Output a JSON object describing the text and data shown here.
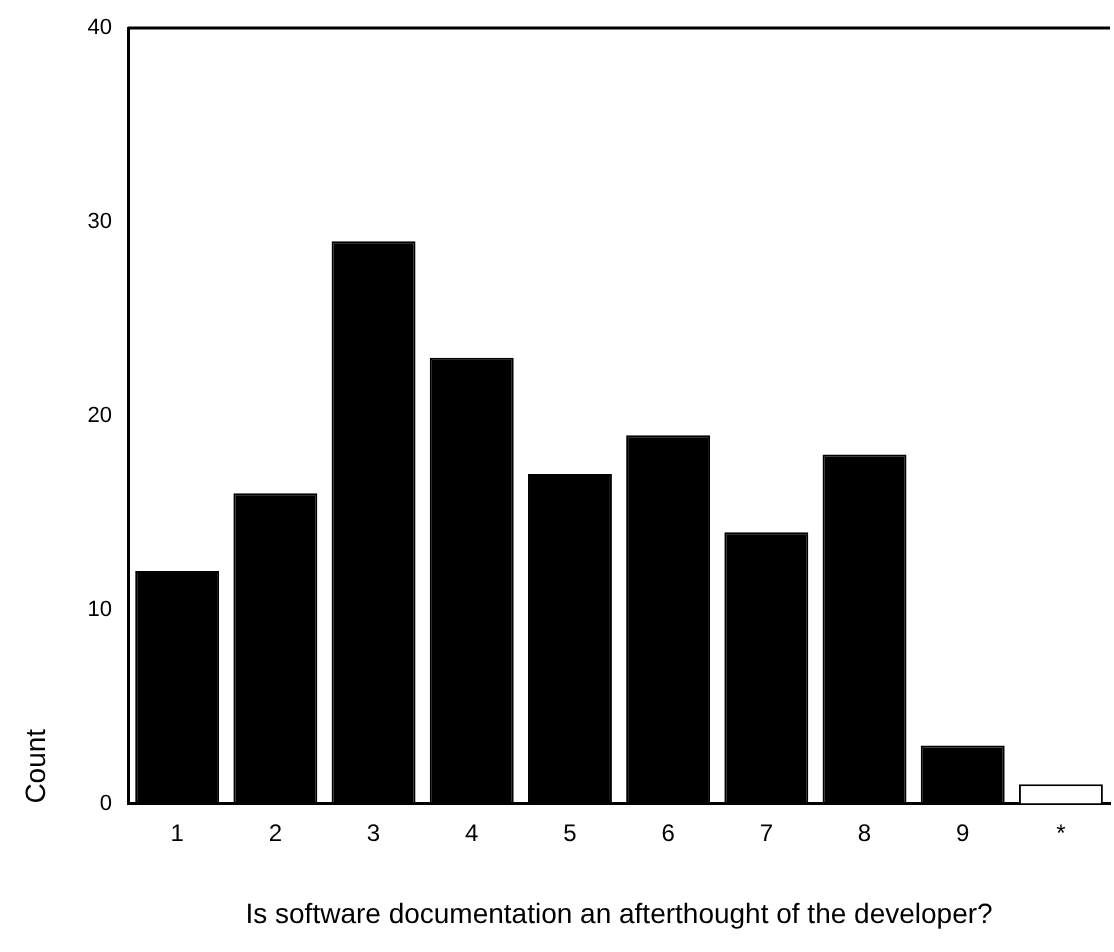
{
  "chart_data": {
    "type": "bar",
    "xlabel": "Is software documentation an afterthought of the developer?",
    "ylabel": "Count",
    "categories": [
      "1",
      "2",
      "3",
      "4",
      "5",
      "6",
      "7",
      "8",
      "9",
      "*"
    ],
    "values": [
      12,
      16,
      29,
      23,
      17,
      19,
      14,
      18,
      3,
      1
    ],
    "colors": [
      "#000000",
      "#000000",
      "#000000",
      "#000000",
      "#000000",
      "#000000",
      "#000000",
      "#000000",
      "#000000",
      "#ffffff"
    ],
    "ylim": [
      0,
      40
    ],
    "yticks": [
      0,
      10,
      20,
      30,
      40
    ],
    "grid": false,
    "legend": false
  }
}
